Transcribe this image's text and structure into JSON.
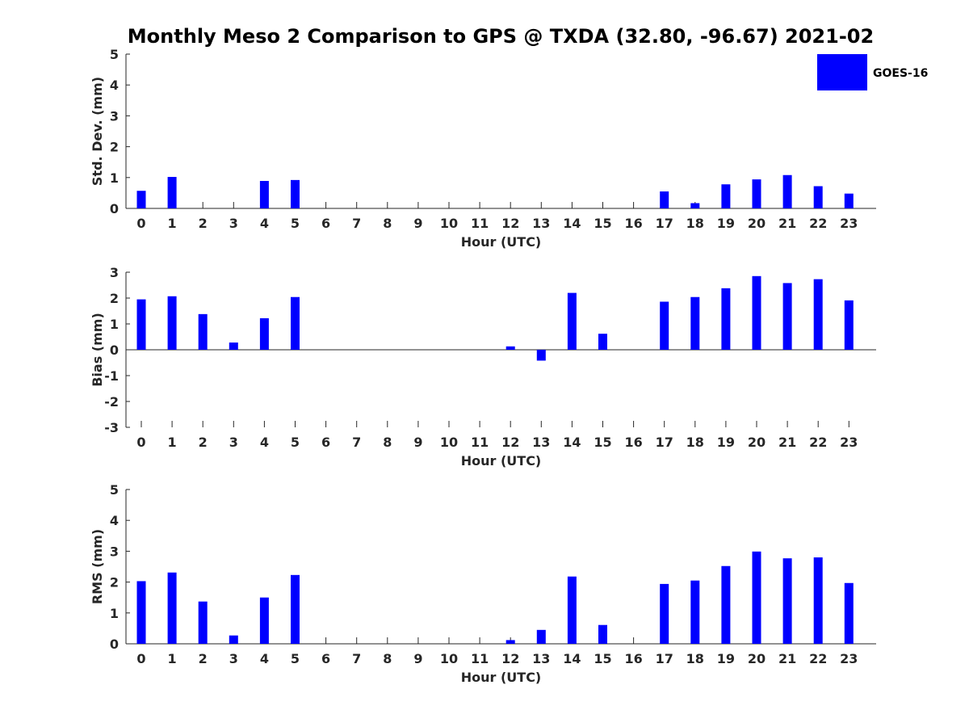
{
  "title": "Monthly Meso 2 Comparison to GPS @ TXDA (32.80, -96.67) 2021-02",
  "legend": {
    "label": "GOES-16",
    "color": "#0000ff",
    "placement": "top-right"
  },
  "chart_data": [
    {
      "type": "bar",
      "xlabel": "Hour (UTC)",
      "ylabel": "Std. Dev. (mm)",
      "ylim": [
        0,
        5
      ],
      "yticks": [
        0,
        1,
        2,
        3,
        4,
        5
      ],
      "categories": [
        "0",
        "1",
        "2",
        "3",
        "4",
        "5",
        "6",
        "7",
        "8",
        "9",
        "10",
        "11",
        "12",
        "13",
        "14",
        "15",
        "16",
        "17",
        "18",
        "19",
        "20",
        "21",
        "22",
        "23"
      ],
      "series": [
        {
          "name": "GOES-16",
          "values": [
            0.57,
            1.02,
            null,
            null,
            0.89,
            0.92,
            null,
            null,
            null,
            null,
            null,
            null,
            null,
            null,
            null,
            null,
            null,
            0.55,
            0.17,
            0.78,
            0.94,
            1.08,
            0.72,
            0.48
          ]
        }
      ],
      "grid": false
    },
    {
      "type": "bar",
      "xlabel": "Hour (UTC)",
      "ylabel": "Bias (mm)",
      "ylim": [
        -3,
        3
      ],
      "yticks": [
        -3,
        -2,
        -1,
        0,
        1,
        2,
        3
      ],
      "categories": [
        "0",
        "1",
        "2",
        "3",
        "4",
        "5",
        "6",
        "7",
        "8",
        "9",
        "10",
        "11",
        "12",
        "13",
        "14",
        "15",
        "16",
        "17",
        "18",
        "19",
        "20",
        "21",
        "22",
        "23"
      ],
      "series": [
        {
          "name": "GOES-16",
          "values": [
            1.95,
            2.07,
            1.38,
            0.28,
            1.22,
            2.04,
            null,
            null,
            null,
            null,
            null,
            null,
            0.13,
            -0.42,
            2.2,
            0.62,
            null,
            1.86,
            2.04,
            2.38,
            2.85,
            2.58,
            2.73,
            1.91
          ]
        }
      ],
      "grid": false
    },
    {
      "type": "bar",
      "xlabel": "Hour (UTC)",
      "ylabel": "RMS (mm)",
      "ylim": [
        0,
        5
      ],
      "yticks": [
        0,
        1,
        2,
        3,
        4,
        5
      ],
      "categories": [
        "0",
        "1",
        "2",
        "3",
        "4",
        "5",
        "6",
        "7",
        "8",
        "9",
        "10",
        "11",
        "12",
        "13",
        "14",
        "15",
        "16",
        "17",
        "18",
        "19",
        "20",
        "21",
        "22",
        "23"
      ],
      "series": [
        {
          "name": "GOES-16",
          "values": [
            2.03,
            2.31,
            1.37,
            0.27,
            1.5,
            2.23,
            null,
            null,
            null,
            null,
            null,
            null,
            0.12,
            0.45,
            2.18,
            0.61,
            null,
            1.94,
            2.05,
            2.52,
            2.99,
            2.77,
            2.8,
            1.97
          ]
        }
      ],
      "grid": false
    }
  ]
}
